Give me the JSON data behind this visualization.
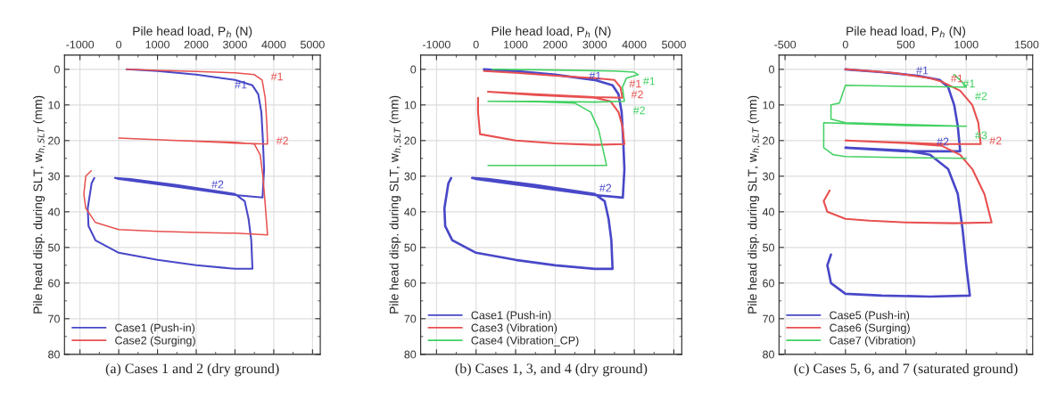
{
  "chart_data": [
    {
      "type": "line",
      "title": "(a) Cases 1 and 2 (dry ground)",
      "xlabel": "Pile head load, P$_{h}$ (N)",
      "ylabel": "Pile head disp. during SLT, w$_{h,SLT}$ (mm)",
      "xlim": [
        -1400,
        5200
      ],
      "xticks": [
        -1000,
        0,
        1000,
        2000,
        3000,
        4000,
        5000
      ],
      "ylim": [
        80,
        -4
      ],
      "yticks": [
        0,
        10,
        20,
        30,
        40,
        50,
        60,
        70,
        80
      ],
      "grid": true,
      "legend": "bottom left",
      "series": [
        {
          "name": "Case1 (Push-in)",
          "color": "#4848c8",
          "x": [
            200,
            1000,
            2000,
            3000,
            3450,
            3600,
            3680,
            3720,
            3750,
            3710,
            3000,
            1500,
            0,
            -100,
            300,
            1500,
            3000,
            3250,
            3350,
            3420,
            3450,
            3000,
            2000,
            1000,
            0,
            -600,
            -780,
            -800,
            -700,
            -630
          ],
          "values": [
            0,
            0.5,
            1.5,
            3,
            4.5,
            7,
            12,
            20,
            28,
            36,
            35.3,
            33,
            30.8,
            30.5,
            30.8,
            32.5,
            35,
            37,
            42,
            48,
            56,
            56,
            55,
            53.5,
            51.5,
            48,
            44,
            39,
            32,
            30.5
          ]
        },
        {
          "name": "Case2 (Surging)",
          "color": "#e85050",
          "x": [
            200,
            1000,
            2000,
            3000,
            3500,
            3700,
            3780,
            3820,
            3840,
            3000,
            1500,
            0,
            1500,
            3000,
            3500,
            3650,
            3720,
            3780,
            3840,
            3000,
            2000,
            1000,
            0,
            -600,
            -850,
            -900,
            -850,
            -710
          ],
          "values": [
            0,
            0.3,
            0.6,
            1,
            1.5,
            3,
            8,
            15,
            21,
            20.7,
            20,
            19.3,
            20,
            20.5,
            21,
            24,
            30,
            38,
            46.5,
            46,
            45.8,
            45.5,
            45,
            43,
            39,
            35,
            30,
            28.5
          ]
        }
      ],
      "annotations": [
        {
          "text": "#1",
          "x": 3700,
          "y": 3
        },
        {
          "text": "#1",
          "x": 3600,
          "y": 7
        },
        {
          "text": "#2",
          "x": 3840,
          "y": 21
        },
        {
          "text": "#2",
          "x": 3000,
          "y": 35
        }
      ]
    },
    {
      "type": "line",
      "title": "(b) Cases 1, 3, and 4 (dry ground)",
      "xlabel": "Pile head load, P$_{h}$ (N)",
      "ylabel": "Pile head disp. during SLT, w$_{h,SLT}$ (mm)",
      "xlim": [
        -1400,
        5200
      ],
      "xticks": [
        -1000,
        0,
        1000,
        2000,
        3000,
        4000,
        5000
      ],
      "ylim": [
        80,
        -4
      ],
      "yticks": [
        0,
        10,
        20,
        30,
        40,
        50,
        60,
        70,
        80
      ],
      "grid": true,
      "legend": "bottom left",
      "series": [
        {
          "name": "Case1 (Push-in)",
          "color": "#4848c8",
          "x": [
            200,
            1000,
            2000,
            3000,
            3450,
            3600,
            3680,
            3720,
            3750,
            3710,
            3000,
            1500,
            0,
            -100,
            300,
            1500,
            3000,
            3250,
            3350,
            3420,
            3450,
            3000,
            2000,
            1000,
            0,
            -600,
            -780,
            -800,
            -700,
            -630
          ],
          "values": [
            0,
            0.5,
            1.5,
            3,
            4.5,
            7,
            12,
            20,
            28,
            36,
            35.3,
            33,
            30.8,
            30.5,
            30.8,
            32.5,
            35,
            37,
            42,
            48,
            56,
            56,
            55,
            53.5,
            51.5,
            48,
            44,
            39,
            32,
            30.5
          ]
        },
        {
          "name": "Case3 (Vibration)",
          "color": "#e85050",
          "x": [
            200,
            1000,
            2000,
            3000,
            3500,
            3650,
            3700,
            3000,
            1500,
            300,
            1500,
            3000,
            3400,
            3600,
            3700,
            3750,
            3000,
            2000,
            1000,
            100,
            50,
            50
          ],
          "values": [
            0.5,
            1,
            1.8,
            2.5,
            3,
            5,
            8,
            7.8,
            7,
            6.3,
            7.2,
            8,
            9,
            12,
            16,
            21,
            21.2,
            20.8,
            20,
            18.2,
            12,
            8
          ]
        },
        {
          "name": "Case4 (Vibration_CP)",
          "color": "#40d060",
          "x": [
            400,
            2000,
            3500,
            4000,
            4100,
            3800,
            3700,
            3750,
            3000,
            1500,
            300,
            1500,
            2500,
            2900,
            3100,
            3200,
            3300,
            2000,
            500,
            300
          ],
          "values": [
            0,
            0.2,
            0.5,
            0.8,
            1.5,
            2.5,
            5,
            9,
            9.2,
            9,
            9,
            9.1,
            9.5,
            12,
            17,
            22,
            27,
            27,
            27,
            27
          ]
        }
      ],
      "annotations": [
        {
          "text": "#1",
          "x": 4000,
          "y": 0.8
        },
        {
          "text": "#1",
          "x": 3450,
          "y": 4.5
        },
        {
          "text": "#1",
          "x": 3650,
          "y": 5
        },
        {
          "text": "#2",
          "x": 3700,
          "y": 8
        },
        {
          "text": "#2",
          "x": 3750,
          "y": 9
        },
        {
          "text": "#2",
          "x": 3710,
          "y": 36
        }
      ]
    },
    {
      "type": "line",
      "title": "(c) Cases 5, 6, and 7 (saturated ground)",
      "xlabel": "Pile head load, P$_{h}$ (N)",
      "ylabel": "Pile head disp. during SLT, w$_{h,SLT}$ (mm)",
      "xlim": [
        -550,
        1550
      ],
      "xticks": [
        -500,
        0,
        500,
        1000,
        1500
      ],
      "ylim": [
        80,
        -4
      ],
      "yticks": [
        0,
        10,
        20,
        30,
        40,
        50,
        60,
        70,
        80
      ],
      "grid": true,
      "legend": "bottom left",
      "series": [
        {
          "name": "Case5 (Push-in)",
          "color": "#4848c8",
          "x": [
            0,
            300,
            600,
            780,
            850,
            900,
            930,
            950,
            500,
            0,
            500,
            700,
            850,
            930,
            970,
            1000,
            1030,
            700,
            300,
            0,
            -120,
            -150,
            -120
          ],
          "values": [
            0,
            0.8,
            1.8,
            3,
            5,
            10,
            16,
            23,
            23,
            22,
            22.8,
            24,
            28,
            35,
            45,
            55,
            63.5,
            63.8,
            63.5,
            63,
            60,
            55,
            52
          ]
        },
        {
          "name": "Case6 (Surging)",
          "color": "#e85050",
          "x": [
            0,
            400,
            700,
            800,
            950,
            1050,
            1100,
            1120,
            800,
            400,
            0,
            500,
            800,
            950,
            1050,
            1150,
            1210,
            900,
            500,
            200,
            0,
            -150,
            -180,
            -130
          ],
          "values": [
            0,
            1,
            2.5,
            3.5,
            6,
            10,
            15,
            21,
            21,
            20.5,
            20,
            20.7,
            21.5,
            24,
            28,
            35,
            43,
            43.2,
            43,
            42.5,
            42,
            40,
            37,
            34
          ]
        },
        {
          "name": "Case7 (Vibration)",
          "color": "#40d060",
          "x": [
            900,
            950,
            1000,
            500,
            0,
            -50,
            -120,
            -120,
            0,
            500,
            1000,
            500,
            0,
            -180,
            -180,
            -100,
            0,
            500,
            1000
          ],
          "values": [
            1.5,
            3,
            5,
            4.8,
            4.5,
            9.5,
            10,
            14,
            15,
            15.5,
            16,
            15.8,
            15.2,
            15,
            22,
            24,
            24.5,
            24.8,
            25
          ]
        }
      ],
      "annotations": [
        {
          "text": "#1",
          "x": 900,
          "y": 1.5
        },
        {
          "text": "#2",
          "x": 1000,
          "y": 5
        },
        {
          "text": "#3",
          "x": 1000,
          "y": 16
        },
        {
          "text": "#1",
          "x": 800,
          "y": 3.5
        },
        {
          "text": "#2",
          "x": 1120,
          "y": 21
        },
        {
          "text": "#1",
          "x": 780,
          "y": 3
        },
        {
          "text": "#2",
          "x": 950,
          "y": 23
        }
      ]
    }
  ]
}
